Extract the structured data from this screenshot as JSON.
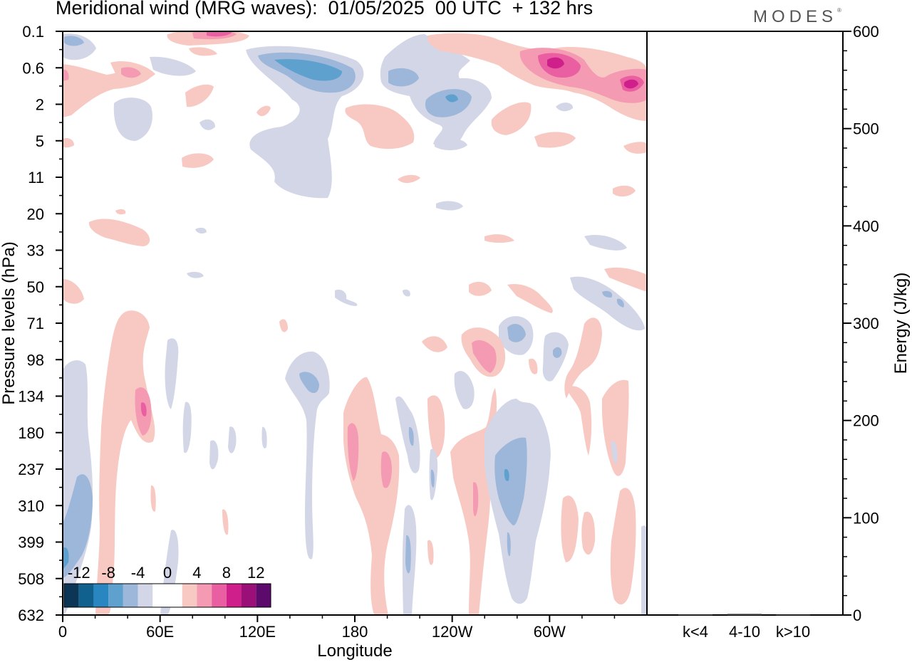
{
  "title": "Meridional wind (MRG waves):  01/05/2025  00 UTC  + 132 hrs",
  "brand": "MODES",
  "brand_mark": "®",
  "chart_data": [
    {
      "type": "heatmap",
      "title": "Meridional wind (MRG waves):  01/05/2025  00 UTC  + 132 hrs",
      "xlabel": "Longitude",
      "ylabel": "Pressure levels (hPa)",
      "x_ticks": [
        "0",
        "60E",
        "120E",
        "180",
        "120W",
        "60W"
      ],
      "x_tick_degrees": [
        0,
        60,
        120,
        180,
        240,
        300
      ],
      "xlim": [
        0,
        360
      ],
      "y_ticks": [
        "0.1",
        "0.6",
        "2",
        "5",
        "11",
        "20",
        "33",
        "50",
        "71",
        "98",
        "134",
        "180",
        "237",
        "310",
        "399",
        "508",
        "632"
      ],
      "y_scale": "model levels (categorical, top to bottom)",
      "colorbar": {
        "labels": [
          "-12",
          "-8",
          "-4",
          "0",
          "4",
          "8",
          "12"
        ],
        "levels": [
          -14,
          -12,
          -10,
          -8,
          -6,
          -4,
          -2,
          0,
          2,
          4,
          6,
          8,
          10,
          12,
          14
        ],
        "colors": [
          "#0d3556",
          "#11618f",
          "#2a86c0",
          "#5ea1cf",
          "#9cb7d9",
          "#d3d6e6",
          "#ffffff",
          "#ffffff",
          "#f8c9c3",
          "#f49ab3",
          "#ea5fa1",
          "#cf1f8a",
          "#9b0f78",
          "#5c0a6b"
        ],
        "placement": "bottom-left"
      },
      "features": [
        {
          "lon": 104,
          "level": "0.1",
          "value": 9
        },
        {
          "lon": 282,
          "level": "0.6",
          "value": 10
        },
        {
          "lon": 345,
          "level": "0.6",
          "value": 9
        },
        {
          "lon": 64,
          "level": "0.6",
          "value": 5
        },
        {
          "lon": 160,
          "level": "0.6",
          "value": -7
        },
        {
          "lon": 231,
          "level": "2",
          "value": -6
        },
        {
          "lon": 248,
          "level": "98",
          "value": 7
        },
        {
          "lon": 280,
          "level": "71",
          "value": -6
        },
        {
          "lon": 50,
          "level": "134",
          "value": 5
        },
        {
          "lon": 153,
          "level": "98",
          "value": -5
        },
        {
          "lon": 178,
          "level": "180",
          "value": 5
        },
        {
          "lon": 200,
          "level": "237",
          "value": 5
        },
        {
          "lon": 276,
          "level": "237",
          "value": -7
        },
        {
          "lon": 10,
          "level": "310",
          "value": -5
        }
      ]
    },
    {
      "type": "bar",
      "categories": [
        "k<4",
        "4-10",
        "k>10"
      ],
      "values": [
        0.5,
        1.2,
        0.4
      ],
      "ylabel": "Energy (J/kg)",
      "ylim": [
        0,
        600
      ],
      "y_ticks": [
        "0",
        "100",
        "200",
        "300",
        "400",
        "500",
        "600"
      ],
      "y_tick_values": [
        0,
        100,
        200,
        300,
        400,
        500,
        600
      ]
    }
  ]
}
